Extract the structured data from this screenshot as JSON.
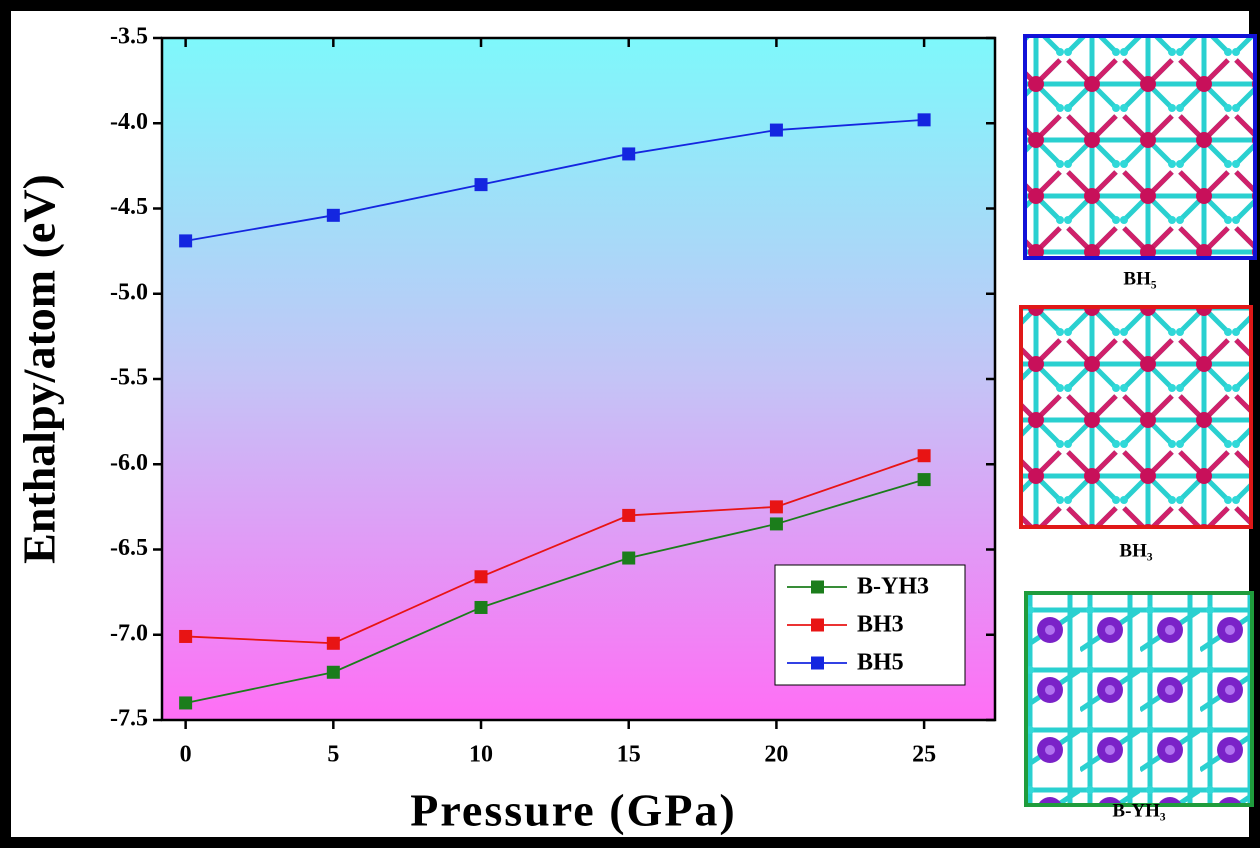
{
  "chart_data": {
    "type": "line",
    "x_label": "Pressure (GPa)",
    "y_label": "Enthalpy/atom (eV)",
    "x": [
      0,
      5,
      10,
      15,
      20,
      25
    ],
    "series": [
      {
        "name": "B-YH3",
        "color": "#1b7d1b",
        "values": [
          -7.4,
          -7.22,
          -6.84,
          -6.55,
          -6.35,
          -6.09
        ]
      },
      {
        "name": "BH3",
        "color": "#e81414",
        "values": [
          -7.01,
          -7.05,
          -6.66,
          -6.3,
          -6.25,
          -5.95
        ]
      },
      {
        "name": "BH5",
        "color": "#1426e0",
        "values": [
          -4.69,
          -4.54,
          -4.36,
          -4.18,
          -4.04,
          -3.98
        ]
      }
    ],
    "marker": "square",
    "xlim": [
      -0.8,
      27.4
    ],
    "ylim": [
      -7.5,
      -3.5
    ],
    "xticks": [
      0,
      5,
      10,
      15,
      20,
      25
    ],
    "yticks": [
      -3.5,
      {
        "value": -4,
        "label": "-4.0"
      },
      -4.5,
      {
        "value": -5,
        "label": "-5.0"
      },
      -5.5,
      {
        "value": -6,
        "label": "-6.0"
      },
      -6.5,
      {
        "value": -7,
        "label": "-7.0"
      },
      -7.5
    ],
    "legend": "lower right"
  },
  "insets": [
    {
      "label": "BH₅",
      "color": "#1212d8"
    },
    {
      "label": "BH₃",
      "color": "#e01818"
    },
    {
      "label": "B-YH₃",
      "color": "#1f9c3c"
    }
  ]
}
